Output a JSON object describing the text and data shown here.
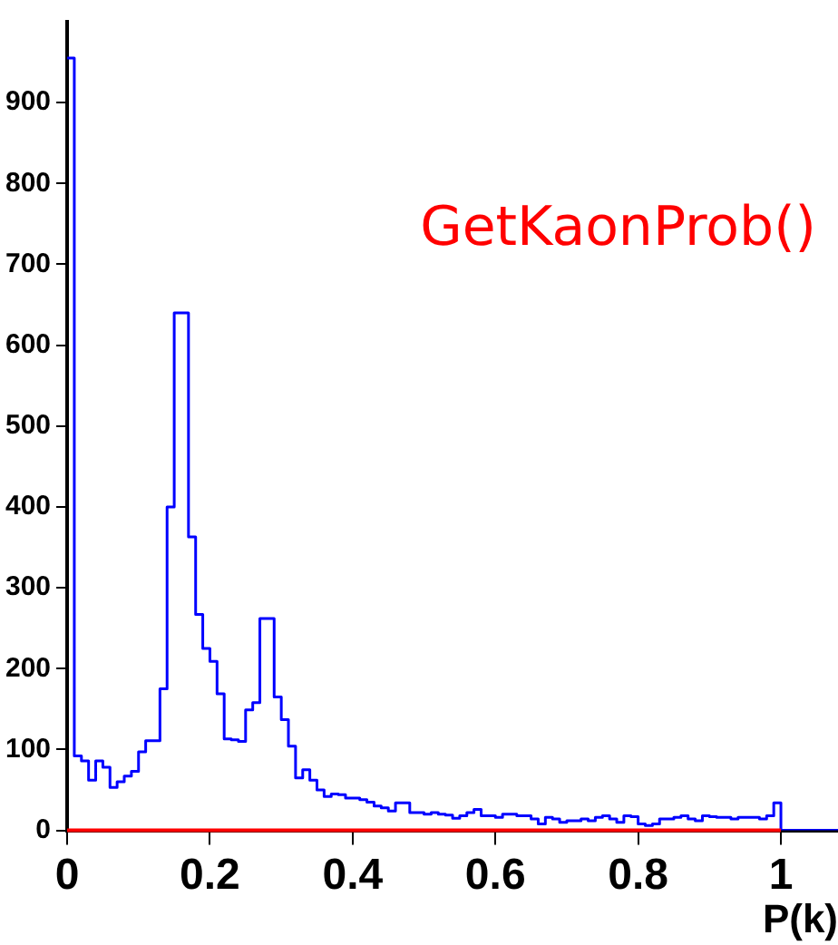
{
  "chart_data": {
    "type": "histogram",
    "xlabel": "P(k)",
    "annotations": [
      "GetKaonProb()"
    ],
    "bins": [
      0,
      0.01,
      0.02,
      0.03,
      0.04,
      0.05,
      0.06,
      0.07,
      0.08,
      0.09,
      0.1,
      0.11,
      0.12,
      0.13,
      0.14,
      0.15,
      0.16,
      0.17,
      0.18,
      0.19,
      0.2,
      0.21,
      0.22,
      0.23,
      0.24,
      0.25,
      0.26,
      0.27,
      0.28,
      0.29,
      0.3,
      0.31,
      0.32,
      0.33,
      0.34,
      0.35,
      0.36,
      0.37,
      0.38,
      0.39,
      0.4,
      0.41,
      0.42,
      0.43,
      0.44,
      0.45,
      0.46,
      0.47,
      0.48,
      0.49,
      0.5,
      0.51,
      0.52,
      0.53,
      0.54,
      0.55,
      0.56,
      0.57,
      0.58,
      0.59,
      0.6,
      0.61,
      0.62,
      0.63,
      0.64,
      0.65,
      0.66,
      0.67,
      0.68,
      0.69,
      0.7,
      0.71,
      0.72,
      0.73,
      0.74,
      0.75,
      0.76,
      0.77,
      0.78,
      0.79,
      0.8,
      0.81,
      0.82,
      0.83,
      0.84,
      0.85,
      0.86,
      0.87,
      0.88,
      0.89,
      0.9,
      0.91,
      0.92,
      0.93,
      0.94,
      0.95,
      0.96,
      0.97,
      0.98,
      0.99,
      1,
      1.01,
      1.02,
      1.03,
      1.04,
      1.05,
      1.06,
      1.07,
      1.08
    ],
    "values": [
      955,
      92,
      86,
      62,
      86,
      78,
      53,
      60,
      67,
      73,
      97,
      111,
      111,
      175,
      400,
      640,
      640,
      363,
      267,
      225,
      209,
      169,
      113,
      112,
      110,
      149,
      158,
      262,
      262,
      165,
      137,
      104,
      65,
      75,
      62,
      50,
      42,
      45,
      44,
      40,
      40,
      38,
      35,
      30,
      28,
      24,
      34,
      34,
      22,
      22,
      20,
      22,
      20,
      19,
      15,
      18,
      22,
      26,
      18,
      18,
      16,
      20,
      20,
      18,
      18,
      14,
      8,
      16,
      14,
      10,
      12,
      12,
      14,
      12,
      16,
      18,
      14,
      10,
      18,
      17,
      8,
      6,
      8,
      14,
      14,
      16,
      18,
      14,
      12,
      18,
      17,
      16,
      16,
      14,
      16,
      16,
      16,
      14,
      18,
      34,
      0,
      0,
      0,
      0,
      0,
      0,
      0,
      0
    ],
    "color": "#0000ff",
    "xlim": [
      0,
      1.08
    ],
    "xticks": [
      0,
      0.2,
      0.4,
      0.6,
      0.8,
      1
    ],
    "ylim": [
      0,
      1000
    ],
    "yticks": [
      0,
      100,
      200,
      300,
      400,
      500,
      600,
      700,
      800,
      900
    ],
    "ref_lines": [
      {
        "axis": "y",
        "value": 0,
        "color": "#ff0000"
      }
    ],
    "grid": false,
    "legend": false
  }
}
